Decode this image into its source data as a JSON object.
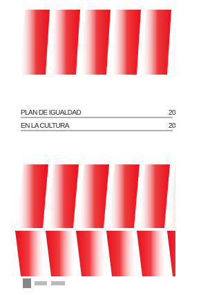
{
  "document": {
    "title_lines": [
      "PLAN DE IGUALDAD",
      "EN LA CULTURA"
    ],
    "years": [
      "20",
      "20"
    ]
  }
}
